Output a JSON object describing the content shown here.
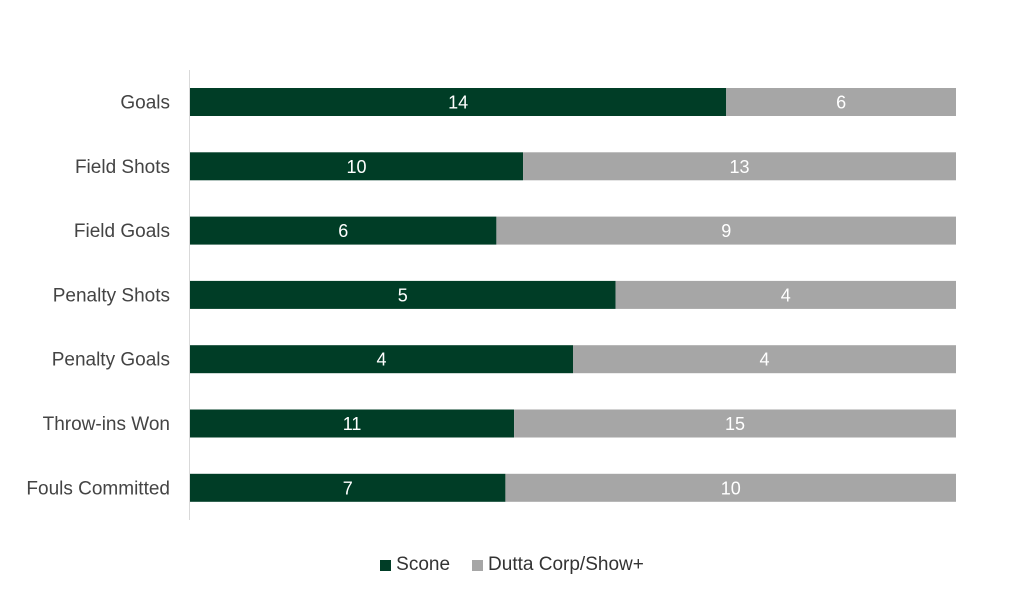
{
  "colors": {
    "scone": "#003d26",
    "dutta": "#a6a6a6"
  },
  "chart_data": {
    "type": "bar",
    "orientation": "horizontal",
    "stacked": "100%",
    "categories": [
      "Goals",
      "Field Shots",
      "Field Goals",
      "Penalty Shots",
      "Penalty Goals",
      "Throw-ins Won",
      "Fouls Committed"
    ],
    "series": [
      {
        "name": "Scone",
        "values": [
          14,
          10,
          6,
          5,
          4,
          11,
          7
        ]
      },
      {
        "name": "Dutta Corp/Show+",
        "values": [
          6,
          13,
          9,
          4,
          4,
          15,
          10
        ]
      }
    ],
    "legend_position": "bottom",
    "grid": false
  }
}
